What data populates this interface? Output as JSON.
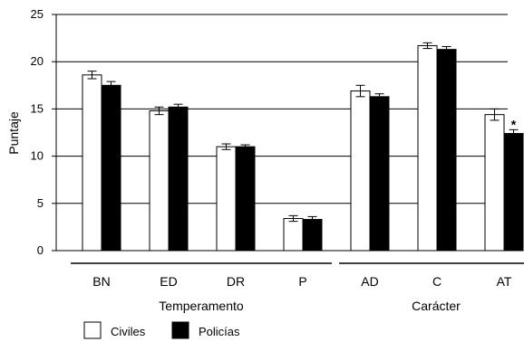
{
  "chart_data": {
    "type": "bar",
    "ylabel": "Puntaje",
    "ylim": [
      0,
      25
    ],
    "yticks": [
      0,
      5,
      10,
      15,
      20,
      25
    ],
    "grid": true,
    "categories": [
      "BN",
      "ED",
      "DR",
      "P",
      "AD",
      "C",
      "AT"
    ],
    "groups": [
      {
        "label": "Temperamento",
        "categories": [
          "BN",
          "ED",
          "DR",
          "P"
        ]
      },
      {
        "label": "Carácter",
        "categories": [
          "AD",
          "C",
          "AT"
        ]
      }
    ],
    "series": [
      {
        "name": "Civiles",
        "color": "#ffffff",
        "values": [
          18.6,
          14.8,
          11.0,
          3.4,
          16.9,
          21.7,
          14.4
        ],
        "errors": [
          0.4,
          0.4,
          0.3,
          0.3,
          0.6,
          0.3,
          0.6
        ]
      },
      {
        "name": "Policías",
        "color": "#000000",
        "values": [
          17.5,
          15.2,
          11.0,
          3.3,
          16.3,
          21.3,
          12.4
        ],
        "errors": [
          0.4,
          0.3,
          0.2,
          0.3,
          0.3,
          0.3,
          0.4
        ]
      }
    ],
    "annotations": [
      {
        "category": "AT",
        "series": "Policías",
        "text": "*"
      }
    ],
    "legend_position": "bottom-left"
  }
}
